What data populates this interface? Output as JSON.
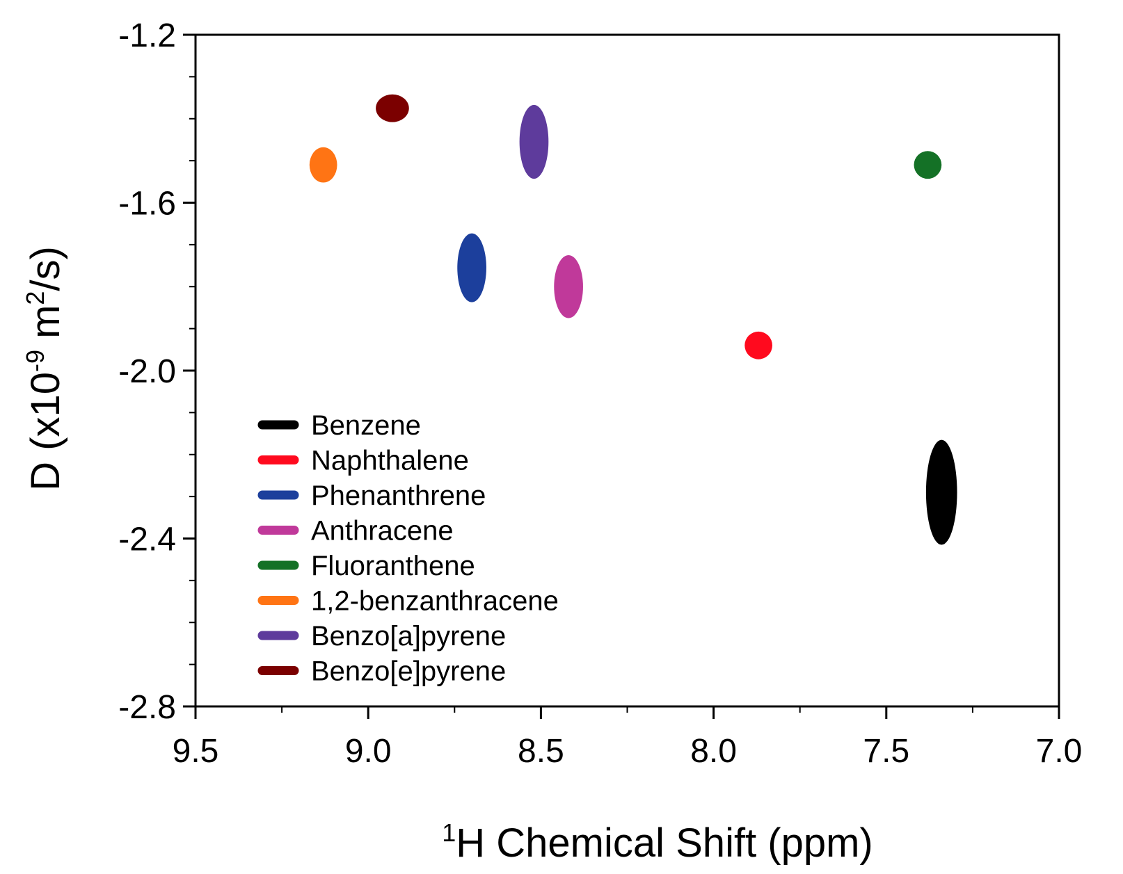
{
  "chart_data": {
    "type": "scatter",
    "title": "",
    "xlabel": {
      "sup": "1",
      "text": "H Chemical Shift (ppm)"
    },
    "ylabel": {
      "pre": "D (x10",
      "sup": "-9",
      "mid": " m",
      "sup2": "2",
      "post": "/s)"
    },
    "xlim": [
      9.5,
      7.0
    ],
    "ylim": [
      -2.8,
      -1.2
    ],
    "x_ticks": [
      "9.5",
      "9.0",
      "8.5",
      "8.0",
      "7.5",
      "7.0"
    ],
    "y_ticks": [
      "-1.2",
      "-1.6",
      "-2.0",
      "-2.4",
      "-2.8"
    ],
    "legend_position": "lower-left",
    "series": [
      {
        "name": "Benzene",
        "color": "#000000",
        "x": 7.34,
        "y": -2.29,
        "x_spread": 0.045,
        "y_spread": 0.125
      },
      {
        "name": "Naphthalene",
        "color": "#ff0a1e",
        "x": 7.87,
        "y": -1.94,
        "x_spread": 0.04,
        "y_spread": 0.033
      },
      {
        "name": "Phenanthrene",
        "color": "#1c3f9c",
        "x": 8.7,
        "y": -1.755,
        "x_spread": 0.042,
        "y_spread": 0.082
      },
      {
        "name": "Anthracene",
        "color": "#c0399a",
        "x": 8.42,
        "y": -1.8,
        "x_spread": 0.042,
        "y_spread": 0.075
      },
      {
        "name": "Fluoranthene",
        "color": "#147126",
        "x": 7.38,
        "y": -1.51,
        "x_spread": 0.04,
        "y_spread": 0.033
      },
      {
        "name": "1,2-benzanthracene",
        "color": "#ff7414",
        "x": 9.13,
        "y": -1.51,
        "x_spread": 0.04,
        "y_spread": 0.042
      },
      {
        "name": "Benzo[a]pyrene",
        "color": "#5e3b9c",
        "x": 8.52,
        "y": -1.455,
        "x_spread": 0.042,
        "y_spread": 0.088
      },
      {
        "name": "Benzo[e]pyrene",
        "color": "#7b0000",
        "x": 8.93,
        "y": -1.375,
        "x_spread": 0.048,
        "y_spread": 0.033
      }
    ]
  }
}
